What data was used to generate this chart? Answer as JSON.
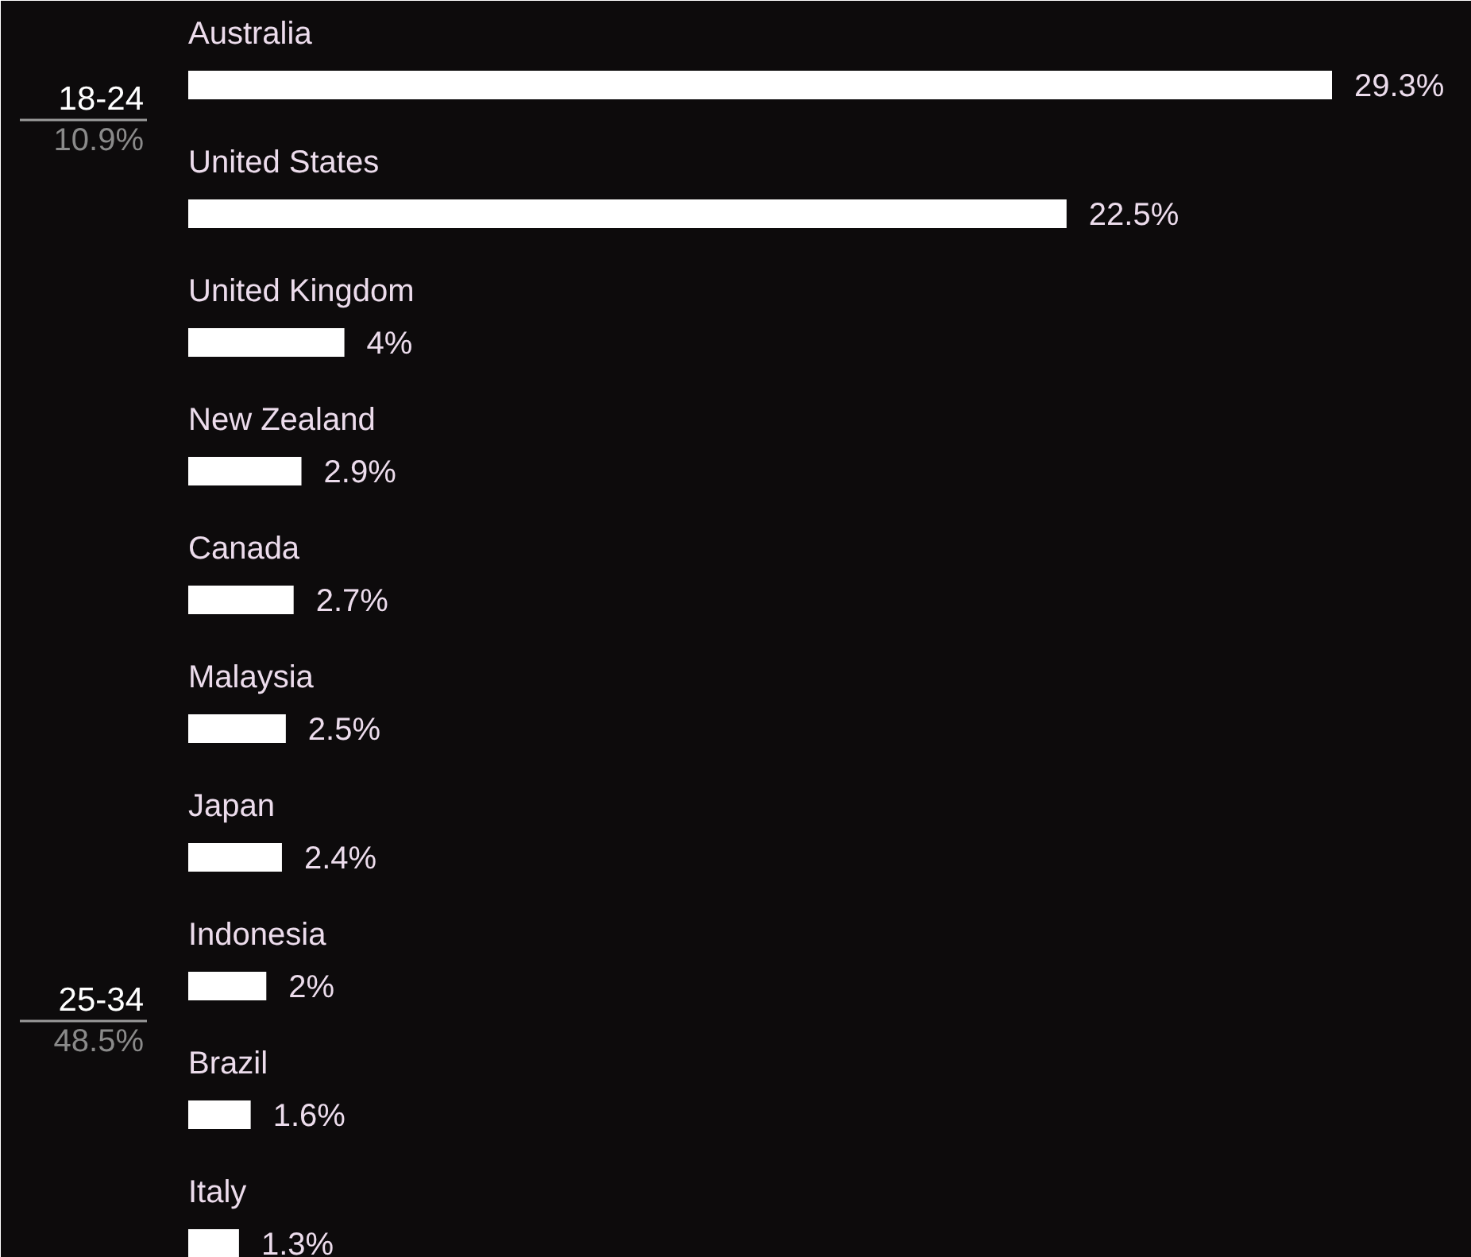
{
  "chart_data": {
    "type": "bar",
    "orientation": "horizontal",
    "categories": [
      "Australia",
      "United States",
      "United Kingdom",
      "New Zealand",
      "Canada",
      "Malaysia",
      "Japan",
      "Indonesia",
      "Brazil",
      "Italy"
    ],
    "values": [
      29.3,
      22.5,
      4,
      2.9,
      2.7,
      2.5,
      2.4,
      2,
      1.6,
      1.3
    ],
    "value_labels": [
      "29.3%",
      "22.5%",
      "4%",
      "2.9%",
      "2.7%",
      "2.5%",
      "2.4%",
      "2%",
      "1.6%",
      "1.3%"
    ],
    "color": "#ffffff",
    "annotations": [
      "18-24",
      "10.9%",
      "25-34",
      "48.5%"
    ]
  }
}
